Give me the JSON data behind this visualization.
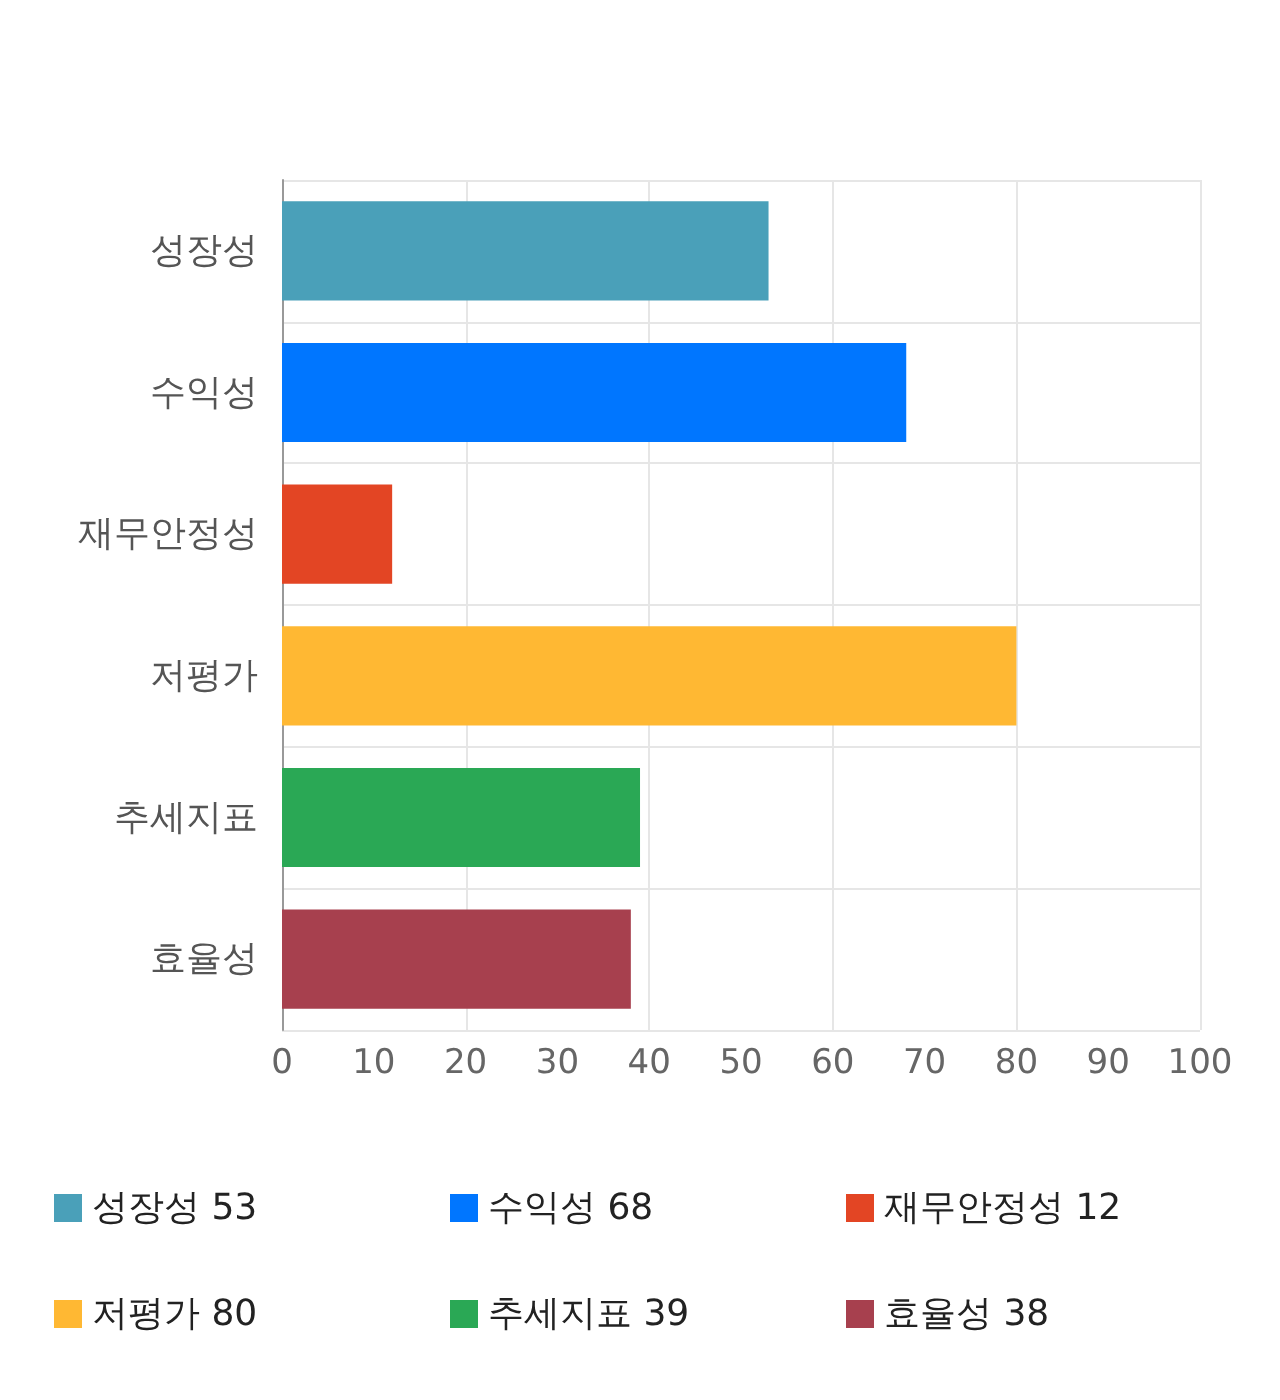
{
  "chart_data": {
    "type": "bar",
    "orientation": "horizontal",
    "categories": [
      "성장성",
      "수익성",
      "재무안정성",
      "저평가",
      "추세지표",
      "효율성"
    ],
    "series": [
      {
        "name": "성장성 53",
        "color": "#4aa0b9",
        "values": [
          53,
          null,
          null,
          null,
          null,
          null
        ]
      },
      {
        "name": "수익성 68",
        "color": "#0076ff",
        "values": [
          null,
          68,
          null,
          null,
          null,
          null
        ]
      },
      {
        "name": "재무안정성 12",
        "color": "#e34524",
        "values": [
          null,
          null,
          12,
          null,
          null,
          null
        ]
      },
      {
        "name": "저평가 80",
        "color": "#ffb833",
        "values": [
          null,
          null,
          null,
          80,
          null,
          null
        ]
      },
      {
        "name": "추세지표 39",
        "color": "#2aa855",
        "values": [
          null,
          null,
          null,
          null,
          39,
          null
        ]
      },
      {
        "name": "효율성 38",
        "color": "#a7404e",
        "values": [
          null,
          null,
          null,
          null,
          null,
          38
        ]
      }
    ],
    "xlim": [
      0,
      100
    ],
    "xticks": [
      0,
      10,
      20,
      30,
      40,
      50,
      60,
      70,
      80,
      90,
      100
    ],
    "grid": true,
    "legend": "bottom"
  }
}
